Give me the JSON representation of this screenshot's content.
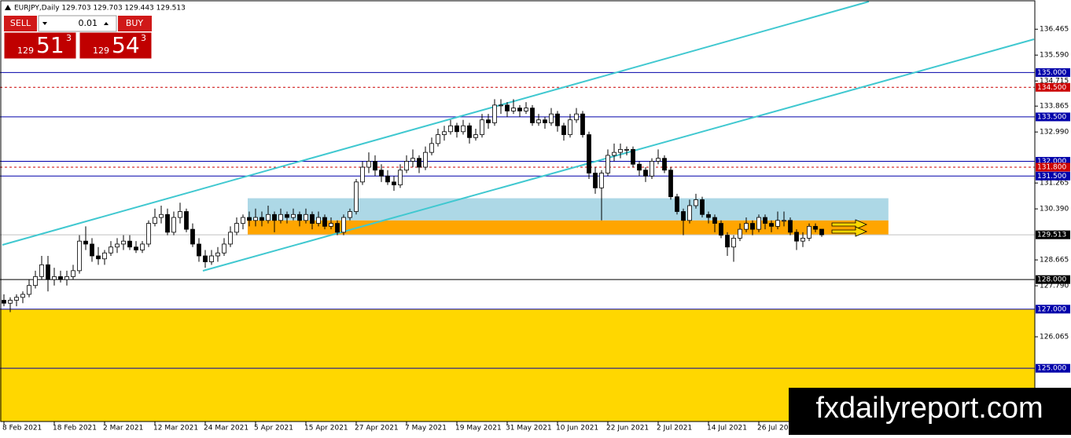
{
  "chart_data": {
    "type": "candlestick",
    "title": "EURJPY,Daily 129.703 129.703 129.443 129.513",
    "ohlc": [
      [
        127.3,
        127.5,
        127.1,
        127.2
      ],
      [
        127.2,
        127.4,
        126.9,
        127.3
      ],
      [
        127.3,
        127.5,
        127.1,
        127.4
      ],
      [
        127.4,
        127.6,
        127.2,
        127.5
      ],
      [
        127.5,
        128.0,
        127.4,
        127.8
      ],
      [
        127.8,
        128.3,
        127.7,
        128.1
      ],
      [
        128.1,
        128.8,
        128.0,
        128.5
      ],
      [
        128.5,
        128.8,
        127.6,
        128.0
      ],
      [
        128.0,
        128.4,
        127.8,
        128.1
      ],
      [
        128.1,
        128.3,
        127.9,
        128.0
      ],
      [
        128.0,
        128.3,
        127.8,
        128.1
      ],
      [
        128.1,
        128.5,
        128.0,
        128.3
      ],
      [
        128.3,
        129.5,
        128.2,
        129.3
      ],
      [
        129.3,
        129.8,
        129.0,
        129.2
      ],
      [
        129.2,
        129.4,
        128.6,
        128.8
      ],
      [
        128.8,
        129.1,
        128.5,
        128.7
      ],
      [
        128.7,
        129.0,
        128.5,
        128.9
      ],
      [
        128.9,
        129.3,
        128.8,
        129.1
      ],
      [
        129.1,
        129.4,
        128.9,
        129.2
      ],
      [
        129.2,
        129.5,
        129.0,
        129.3
      ],
      [
        129.3,
        129.5,
        129.0,
        129.1
      ],
      [
        129.1,
        129.3,
        128.9,
        129.0
      ],
      [
        129.0,
        129.3,
        128.9,
        129.2
      ],
      [
        129.2,
        130.0,
        129.1,
        129.9
      ],
      [
        129.9,
        130.4,
        129.8,
        130.1
      ],
      [
        130.1,
        130.5,
        129.9,
        130.2
      ],
      [
        130.2,
        130.4,
        129.5,
        129.6
      ],
      [
        129.6,
        130.3,
        129.5,
        130.1
      ],
      [
        130.1,
        130.6,
        129.9,
        130.3
      ],
      [
        130.3,
        130.4,
        129.6,
        129.7
      ],
      [
        129.7,
        129.9,
        129.1,
        129.2
      ],
      [
        129.2,
        129.4,
        128.6,
        128.8
      ],
      [
        128.8,
        129.0,
        128.4,
        128.6
      ],
      [
        128.6,
        129.0,
        128.5,
        128.8
      ],
      [
        128.8,
        129.1,
        128.6,
        128.9
      ],
      [
        128.9,
        129.4,
        128.8,
        129.2
      ],
      [
        129.2,
        129.8,
        129.1,
        129.6
      ],
      [
        129.6,
        130.1,
        129.5,
        129.9
      ],
      [
        129.9,
        130.2,
        129.7,
        130.1
      ],
      [
        130.1,
        130.3,
        129.8,
        130.0
      ],
      [
        130.0,
        130.4,
        129.8,
        130.1
      ],
      [
        130.1,
        130.3,
        129.8,
        130.0
      ],
      [
        130.0,
        130.5,
        129.9,
        130.2
      ],
      [
        130.2,
        130.3,
        129.6,
        130.0
      ],
      [
        130.0,
        130.4,
        129.9,
        130.2
      ],
      [
        130.2,
        130.3,
        129.9,
        130.1
      ],
      [
        130.1,
        130.4,
        130.0,
        130.2
      ],
      [
        130.2,
        130.3,
        129.8,
        130.0
      ],
      [
        130.0,
        130.4,
        129.9,
        130.2
      ],
      [
        130.2,
        130.3,
        129.7,
        129.9
      ],
      [
        129.9,
        130.3,
        129.8,
        130.1
      ],
      [
        130.1,
        130.2,
        129.7,
        129.8
      ],
      [
        129.8,
        130.1,
        129.7,
        129.9
      ],
      [
        129.9,
        130.0,
        129.5,
        129.6
      ],
      [
        129.6,
        130.2,
        129.5,
        130.1
      ],
      [
        130.1,
        130.4,
        130.0,
        130.3
      ],
      [
        130.3,
        131.4,
        130.2,
        131.3
      ],
      [
        131.3,
        132.0,
        131.2,
        131.8
      ],
      [
        131.8,
        132.3,
        131.6,
        132.0
      ],
      [
        132.0,
        132.2,
        131.5,
        131.7
      ],
      [
        131.7,
        131.9,
        131.3,
        131.5
      ],
      [
        131.5,
        131.7,
        131.2,
        131.3
      ],
      [
        131.3,
        131.5,
        131.0,
        131.2
      ],
      [
        131.2,
        131.9,
        131.1,
        131.7
      ],
      [
        131.7,
        132.2,
        131.6,
        132.0
      ],
      [
        132.0,
        132.4,
        131.8,
        132.1
      ],
      [
        132.1,
        132.2,
        131.6,
        131.8
      ],
      [
        131.8,
        132.5,
        131.7,
        132.3
      ],
      [
        132.3,
        132.8,
        132.2,
        132.6
      ],
      [
        132.6,
        133.1,
        132.5,
        132.9
      ],
      [
        132.9,
        133.2,
        132.7,
        133.0
      ],
      [
        133.0,
        133.4,
        132.9,
        133.2
      ],
      [
        133.2,
        133.3,
        132.8,
        133.0
      ],
      [
        133.0,
        133.4,
        132.9,
        133.2
      ],
      [
        133.2,
        133.3,
        132.6,
        132.8
      ],
      [
        132.8,
        133.1,
        132.7,
        132.9
      ],
      [
        132.9,
        133.6,
        132.8,
        133.4
      ],
      [
        133.4,
        133.6,
        133.1,
        133.3
      ],
      [
        133.3,
        134.1,
        133.2,
        133.9
      ],
      [
        133.9,
        134.1,
        133.6,
        133.9
      ],
      [
        133.9,
        134.0,
        133.5,
        133.7
      ],
      [
        133.7,
        134.1,
        133.6,
        133.8
      ],
      [
        133.8,
        133.9,
        133.5,
        133.7
      ],
      [
        133.7,
        134.0,
        133.6,
        133.8
      ],
      [
        133.8,
        133.9,
        133.2,
        133.3
      ],
      [
        133.3,
        133.6,
        133.2,
        133.4
      ],
      [
        133.4,
        133.5,
        133.1,
        133.3
      ],
      [
        133.3,
        133.8,
        133.2,
        133.6
      ],
      [
        133.6,
        133.7,
        133.0,
        133.2
      ],
      [
        133.2,
        133.3,
        132.7,
        132.9
      ],
      [
        132.9,
        133.6,
        132.8,
        133.4
      ],
      [
        133.4,
        133.8,
        133.3,
        133.6
      ],
      [
        133.6,
        133.7,
        132.8,
        132.9
      ],
      [
        132.9,
        133.0,
        131.4,
        131.6
      ],
      [
        131.6,
        131.8,
        130.9,
        131.1
      ],
      [
        131.1,
        131.7,
        130.0,
        131.6
      ],
      [
        131.6,
        132.4,
        131.5,
        132.2
      ],
      [
        132.2,
        132.6,
        132.0,
        132.3
      ],
      [
        132.3,
        132.6,
        132.1,
        132.4
      ],
      [
        132.4,
        132.5,
        132.2,
        132.4
      ],
      [
        132.4,
        132.5,
        131.8,
        131.9
      ],
      [
        131.9,
        132.0,
        131.5,
        131.7
      ],
      [
        131.7,
        131.8,
        131.3,
        131.5
      ],
      [
        131.5,
        132.1,
        131.4,
        132.0
      ],
      [
        132.0,
        132.4,
        131.9,
        132.1
      ],
      [
        132.1,
        132.2,
        131.6,
        131.7
      ],
      [
        131.7,
        131.8,
        130.7,
        130.8
      ],
      [
        130.8,
        130.9,
        130.2,
        130.3
      ],
      [
        130.3,
        130.4,
        129.5,
        130.0
      ],
      [
        130.0,
        130.7,
        129.9,
        130.5
      ],
      [
        130.5,
        130.9,
        130.4,
        130.7
      ],
      [
        130.7,
        130.8,
        130.1,
        130.2
      ],
      [
        130.2,
        130.3,
        129.9,
        130.1
      ],
      [
        130.1,
        130.2,
        129.6,
        129.9
      ],
      [
        129.9,
        130.0,
        129.4,
        129.5
      ],
      [
        129.5,
        129.6,
        128.8,
        129.1
      ],
      [
        129.1,
        129.5,
        128.6,
        129.4
      ],
      [
        129.4,
        129.9,
        129.3,
        129.7
      ],
      [
        129.7,
        130.1,
        129.6,
        129.9
      ],
      [
        129.9,
        130.0,
        129.5,
        129.7
      ],
      [
        129.7,
        130.2,
        129.6,
        130.1
      ],
      [
        130.1,
        130.2,
        129.7,
        129.9
      ],
      [
        129.9,
        130.0,
        129.6,
        129.8
      ],
      [
        129.8,
        130.3,
        129.7,
        130.0
      ],
      [
        130.0,
        130.3,
        129.8,
        130.0
      ],
      [
        130.0,
        130.1,
        129.5,
        129.6
      ],
      [
        129.6,
        129.7,
        129.0,
        129.3
      ],
      [
        129.3,
        129.6,
        129.1,
        129.4
      ],
      [
        129.4,
        129.9,
        129.3,
        129.8
      ],
      [
        129.8,
        129.9,
        129.6,
        129.7
      ],
      [
        129.703,
        129.703,
        129.443,
        129.513
      ]
    ],
    "bull_color": "#ffffff",
    "bear_color": "#000000",
    "xlim": [
      -0.625,
      163.875
    ],
    "ylim": [
      123.2,
      137.4
    ],
    "yticks": [
      136.465,
      {
        "value": 135.59,
        "label": "135.590"
      },
      134.715,
      133.865,
      {
        "value": 132.99,
        "label": "132.990"
      },
      131.265,
      {
        "value": 130.39,
        "label": "130.390"
      },
      128.665,
      {
        "value": 127.79,
        "label": "127.790"
      },
      126.065
    ],
    "xticks": [
      {
        "value": 0,
        "label": "8 Feb 2021"
      },
      {
        "value": 8,
        "label": "18 Feb 2021"
      },
      {
        "value": 16,
        "label": "2 Mar 2021"
      },
      {
        "value": 24,
        "label": "12 Mar 2021"
      },
      {
        "value": 32,
        "label": "24 Mar 2021"
      },
      {
        "value": 40,
        "label": "5 Apr 2021"
      },
      {
        "value": 48,
        "label": "15 Apr 2021"
      },
      {
        "value": 56,
        "label": "27 Apr 2021"
      },
      {
        "value": 64,
        "label": "7 May 2021"
      },
      {
        "value": 72,
        "label": "19 May 2021"
      },
      {
        "value": 80,
        "label": "31 May 2021"
      },
      {
        "value": 88,
        "label": "10 Jun 2021"
      },
      {
        "value": 96,
        "label": "22 Jun 2021"
      },
      {
        "value": 104,
        "label": "2 Jul 2021"
      },
      {
        "value": 112,
        "label": "14 Jul 2021"
      },
      {
        "value": 120,
        "label": "26 Jul 2021"
      }
    ],
    "zones": [
      {
        "low": 123.2,
        "high": 127.0,
        "from": -0.625,
        "to": 163.875,
        "color": "#ffd700"
      },
      {
        "low": 130.0,
        "high": 130.75,
        "from": 38.75,
        "to": 140.6,
        "color": "#add8e6"
      },
      {
        "low": 129.52,
        "high": 130.0,
        "from": 38.75,
        "to": 140.6,
        "color": "#ffa500"
      }
    ],
    "levels": [
      {
        "value": 135,
        "label": "135.000",
        "color": "#0000aa",
        "dash": false
      },
      {
        "value": 134.5,
        "label": "134.500",
        "color": "#cc0000",
        "dash": true
      },
      {
        "value": 133.5,
        "label": "133.500",
        "color": "#0000aa",
        "dash": false
      },
      {
        "value": 132,
        "label": "132.000",
        "color": "#0000aa",
        "dash": false
      },
      {
        "value": 131.8,
        "label": "131.800",
        "color": "#cc0000",
        "dash": true
      },
      {
        "value": 131.5,
        "label": "131.500",
        "color": "#0000aa",
        "dash": false
      },
      {
        "value": 129.513,
        "label": "129.513",
        "color": "#c0c0c0",
        "dash": false
      },
      {
        "value": 128,
        "label": "128.000",
        "color": "#000000",
        "dash": false
      },
      {
        "value": 127,
        "label": "127.000",
        "color": "#0000aa",
        "dash": false
      },
      {
        "value": 125,
        "label": "125.000",
        "color": "#0000aa",
        "dash": false
      }
    ]
  },
  "trade_panel": {
    "sell": "SELL",
    "buy": "BUY",
    "lot": "0.01",
    "bid": {
      "big": "129",
      "main": "51",
      "sup": "3"
    },
    "ask": {
      "big": "129",
      "main": "54",
      "sup": "3"
    }
  },
  "watermark": "fxdailyreport.com"
}
